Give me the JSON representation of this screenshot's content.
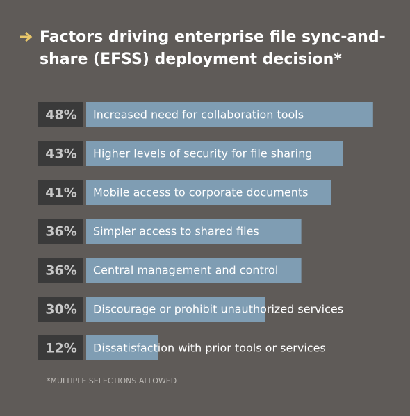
{
  "chart_data": {
    "type": "bar",
    "title": "Factors driving enterprise file sync-and-share (EFSS) deployment decision*",
    "categories": [
      "Increased need for collaboration tools",
      "Higher levels of security for file sharing",
      "Mobile access to corporate documents",
      "Simpler access to shared files",
      "Central management and control",
      "Discourage or prohibit unauthorized services",
      "Dissatisfaction with prior tools or services"
    ],
    "values": [
      48,
      43,
      41,
      36,
      36,
      30,
      12
    ],
    "value_labels": [
      "48%",
      "43%",
      "41%",
      "36%",
      "36%",
      "30%",
      "12%"
    ],
    "color": "#7f9db3",
    "footnote": "*MULTIPLE SELECTIONS ALLOWED"
  }
}
